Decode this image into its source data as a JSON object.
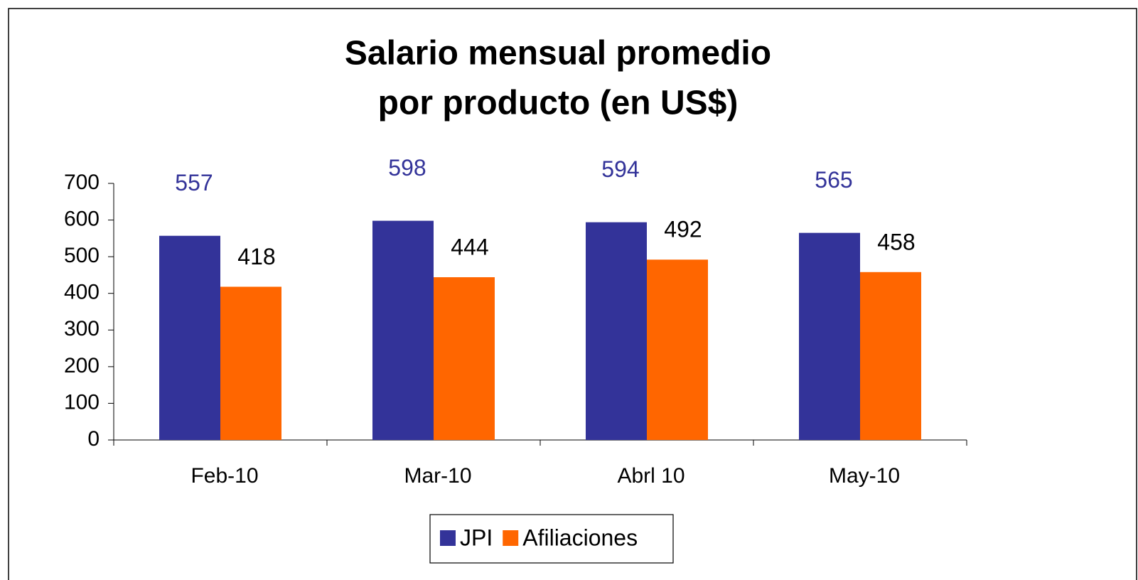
{
  "chart_data": {
    "type": "bar",
    "title": [
      "Salario mensual promedio",
      "por producto (en US$)"
    ],
    "categories": [
      "Feb-10",
      "Mar-10",
      "Abrl 10",
      "May-10"
    ],
    "series": [
      {
        "name": "JPI",
        "color": "#333399",
        "label_color": "#333399",
        "values": [
          557,
          598,
          594,
          565
        ]
      },
      {
        "name": "Afiliaciones",
        "color": "#ff6600",
        "label_color": "#000000",
        "values": [
          418,
          444,
          492,
          458
        ]
      }
    ],
    "ylim": [
      0,
      700
    ],
    "yticks": [
      0,
      100,
      200,
      300,
      400,
      500,
      600,
      700
    ],
    "grid": false,
    "legend": "bottom"
  }
}
